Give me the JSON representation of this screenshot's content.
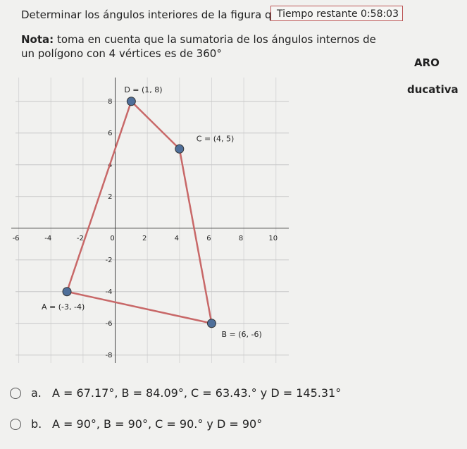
{
  "header": {
    "question": "Determinar los ángulos interiores de la figura que s",
    "timer_label": "Tiempo restante",
    "timer": "0:58:03"
  },
  "note": {
    "bold": "Nota:",
    "text": "toma en cuenta que la sumatoria de los ángulos internos de un polígono con 4 vértices es de 360°"
  },
  "side": [
    "ARO",
    "ducativa"
  ],
  "graph": {
    "type": "polygon",
    "points": [
      {
        "label": "A = (-3, -4)",
        "x": -3,
        "y": -4
      },
      {
        "label": "D = (1, 8)",
        "x": 1,
        "y": 8
      },
      {
        "label": "C = (4, 5)",
        "x": 4,
        "y": 5
      },
      {
        "label": "B = (6, -6)",
        "x": 6,
        "y": -6
      }
    ],
    "line_color": "#c86868",
    "point_color": "#4f6f9a",
    "xlim": [
      -6.2,
      10.8
    ],
    "ylim": [
      -8.5,
      9.5
    ],
    "xticks": [
      -6,
      -4,
      -2,
      0,
      2,
      4,
      6,
      8,
      10
    ],
    "yticks": [
      -8,
      -6,
      -4,
      -2,
      2,
      4,
      6,
      8
    ],
    "grid": true
  },
  "options": [
    {
      "letter": "a.",
      "text": "A = 67.17°, B = 84.09°, C = 63.43.° y D = 145.31°"
    },
    {
      "letter": "b.",
      "text": "A = 90°, B = 90°, C = 90.° y D = 90°"
    }
  ]
}
